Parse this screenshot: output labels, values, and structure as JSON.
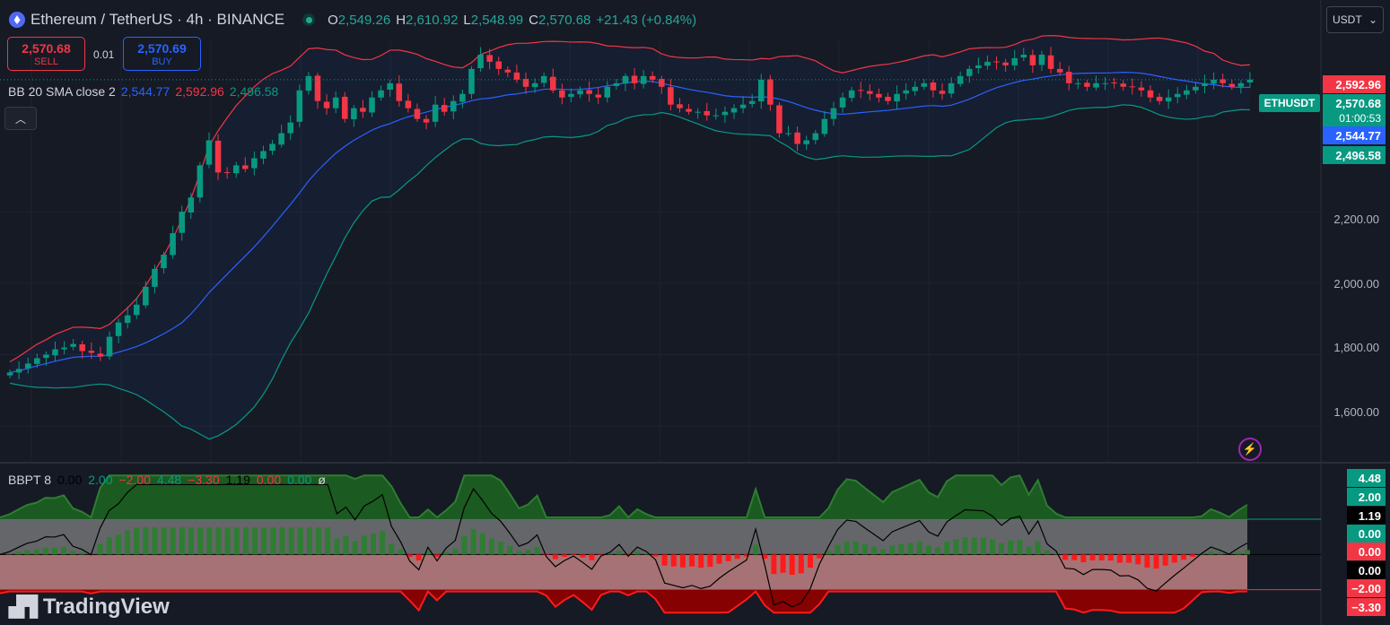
{
  "header": {
    "symbol_title": "Ethereum / TetherUS · 4h · BINANCE",
    "ohlc": [
      {
        "label": "O",
        "value": "2,549.26"
      },
      {
        "label": "H",
        "value": "2,610.92"
      },
      {
        "label": "L",
        "value": "2,548.99"
      },
      {
        "label": "C",
        "value": "2,570.68"
      }
    ],
    "change": "+21.43 (+0.84%)",
    "currency": "USDT"
  },
  "trade": {
    "sell_price": "2,570.68",
    "sell_label": "SELL",
    "spread": "0.01",
    "buy_price": "2,570.69",
    "buy_label": "BUY"
  },
  "bb_legend": {
    "name": "BB 20 SMA close 2",
    "basis": "2,544.77",
    "upper": "2,592.96",
    "lower": "2,496.58"
  },
  "price_axis": {
    "ticks": [
      "2,200.00",
      "2,000.00",
      "1,800.00",
      "1,600.00"
    ],
    "tags": {
      "upper": "2,592.96",
      "last": "2,570.68",
      "countdown": "01:00:53",
      "basis": "2,544.77",
      "lower": "2,496.58"
    },
    "symbol_tag": "ETHUSDT"
  },
  "indicator": {
    "name": "BBPT 8",
    "values": [
      {
        "text": "0.00",
        "color": "#000000"
      },
      {
        "text": "2.00",
        "color": "#089981"
      },
      {
        "text": "−2.00",
        "color": "#f23645"
      },
      {
        "text": "4.48",
        "color": "#089981"
      },
      {
        "text": "−3.30",
        "color": "#f23645"
      },
      {
        "text": "1.19",
        "color": "#000000"
      },
      {
        "text": "0.00",
        "color": "#f23645"
      },
      {
        "text": "0.00",
        "color": "#089981"
      },
      {
        "text": "ø",
        "color": "#d1d4dc"
      }
    ],
    "axis_tags": {
      "max": "4.48",
      "upper": "2.00",
      "value": "1.19",
      "zero_green": "0.00",
      "zero_red": "0.00",
      "zero": "0.00",
      "lower": "−2.00",
      "min": "−3.30"
    }
  },
  "branding": {
    "logo_text": "TradingView"
  },
  "colors": {
    "background": "#161a25",
    "up": "#089981",
    "down": "#f23645",
    "bb_upper": "#f23645",
    "bb_basis": "#2962ff",
    "bb_lower": "#089981"
  },
  "chart_data": {
    "type": "candlestick",
    "symbol": "ETHUSDT",
    "interval": "4h",
    "ylim": [
      1500,
      2680
    ],
    "y_ticks": [
      1600,
      1800,
      2000,
      2200
    ],
    "closes": [
      1750,
      1760,
      1775,
      1790,
      1800,
      1815,
      1820,
      1830,
      1810,
      1805,
      1795,
      1850,
      1890,
      1910,
      1940,
      1990,
      2040,
      2080,
      2140,
      2200,
      2240,
      2330,
      2400,
      2310,
      2310,
      2330,
      2320,
      2350,
      2370,
      2390,
      2420,
      2450,
      2540,
      2580,
      2510,
      2490,
      2520,
      2460,
      2490,
      2480,
      2520,
      2540,
      2560,
      2510,
      2490,
      2460,
      2450,
      2500,
      2480,
      2510,
      2530,
      2600,
      2640,
      2620,
      2600,
      2590,
      2570,
      2550,
      2560,
      2580,
      2540,
      2520,
      2530,
      2540,
      2530,
      2520,
      2550,
      2560,
      2580,
      2560,
      2580,
      2570,
      2550,
      2500,
      2490,
      2480,
      2480,
      2470,
      2470,
      2480,
      2490,
      2500,
      2510,
      2570,
      2500,
      2420,
      2420,
      2390,
      2400,
      2420,
      2460,
      2490,
      2520,
      2540,
      2540,
      2530,
      2520,
      2510,
      2530,
      2540,
      2550,
      2560,
      2540,
      2530,
      2560,
      2580,
      2600,
      2610,
      2620,
      2620,
      2610,
      2630,
      2640,
      2610,
      2640,
      2600,
      2590,
      2560,
      2560,
      2550,
      2560,
      2560,
      2560,
      2550,
      2550,
      2540,
      2520,
      2510,
      2520,
      2530,
      2540,
      2550,
      2560,
      2570,
      2560,
      2550,
      2560,
      2570
    ],
    "bb_upper_last": 2592.96,
    "bb_basis_last": 2544.77,
    "bb_lower_last": 2496.58,
    "oscillator": {
      "name": "BBPT 8",
      "ylim": [
        -4,
        5
      ],
      "levels": [
        2,
        0,
        -2
      ],
      "max": 4.48,
      "min": -3.3,
      "last": 1.19
    }
  }
}
